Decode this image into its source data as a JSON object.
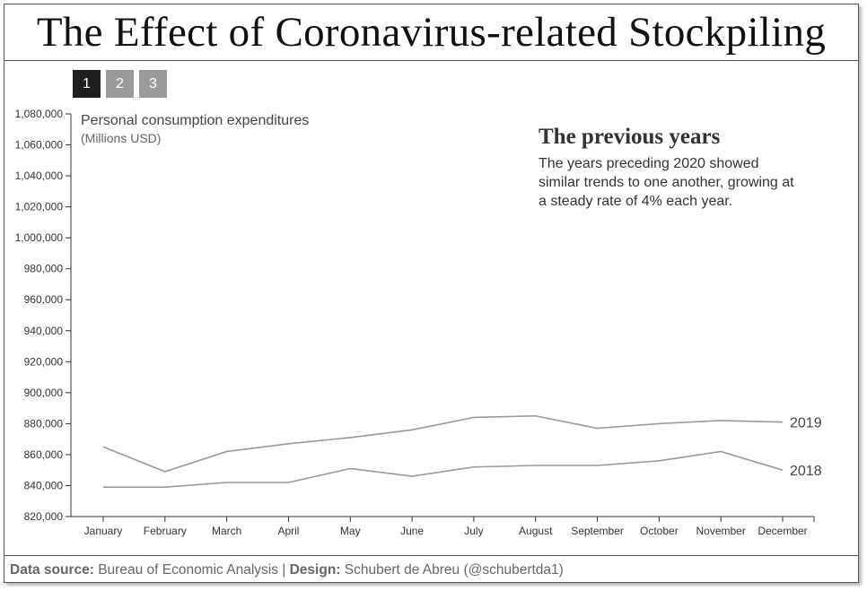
{
  "title": "The Effect of Coronavirus-related Stockpiling",
  "steps": [
    "1",
    "2",
    "3"
  ],
  "active_step": 0,
  "annotation": {
    "heading": "The previous years",
    "lines": [
      "The years preceding 2020 showed",
      "similar trends to one another, growing at",
      "a steady rate of 4% each year."
    ]
  },
  "footer": {
    "source_label": "Data source:",
    "source_value": " Bureau of Economic Analysis | ",
    "design_label": "Design:",
    "design_value": " Schubert de Abreu (@schubertda1)"
  },
  "chart_data": {
    "type": "line",
    "ylabel": "Personal consumption expenditures",
    "ylabel_sub": "(Millions USD)",
    "categories": [
      "January",
      "February",
      "March",
      "April",
      "May",
      "June",
      "July",
      "August",
      "September",
      "October",
      "November",
      "December"
    ],
    "ylim": [
      820000,
      1080000
    ],
    "yticks": [
      820000,
      840000,
      860000,
      880000,
      900000,
      920000,
      940000,
      960000,
      980000,
      1000000,
      1020000,
      1040000,
      1060000,
      1080000
    ],
    "ytick_labels": [
      "820,000",
      "840,000",
      "860,000",
      "880,000",
      "900,000",
      "920,000",
      "940,000",
      "960,000",
      "980,000",
      "1,000,000",
      "1,020,000",
      "1,040,000",
      "1,060,000",
      "1,080,000"
    ],
    "grid": false,
    "color": "#999999",
    "series": [
      {
        "name": "2019",
        "values": [
          865000,
          849000,
          862000,
          867000,
          871000,
          876000,
          884000,
          885000,
          877000,
          880000,
          882000,
          881000
        ]
      },
      {
        "name": "2018",
        "values": [
          839000,
          839000,
          842000,
          842000,
          851000,
          846000,
          852000,
          853000,
          853000,
          856000,
          862000,
          850000
        ]
      }
    ]
  }
}
